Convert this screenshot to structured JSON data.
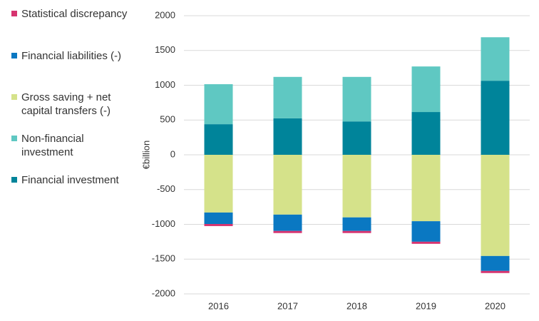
{
  "chart_data": {
    "type": "stacked-bar",
    "y_label": "€billion",
    "categories": [
      "2016",
      "2017",
      "2018",
      "2019",
      "2020"
    ],
    "series": [
      {
        "name": "Financial investment",
        "color": "#00849a",
        "values": [
          440,
          525,
          480,
          615,
          1065
        ]
      },
      {
        "name": "Non-financial investment",
        "color": "#5fc8c2",
        "values": [
          575,
          595,
          640,
          655,
          625
        ]
      },
      {
        "name": "Gross saving + net capital transfers (-)",
        "color": "#d5e28a",
        "values": [
          -830,
          -860,
          -900,
          -955,
          -1455
        ]
      },
      {
        "name": "Financial liabilities (-)",
        "color": "#0a78c2",
        "values": [
          -165,
          -235,
          -195,
          -295,
          -215
        ]
      },
      {
        "name": "Statistical discrepancy",
        "color": "#d6336f",
        "values": [
          -30,
          -30,
          -30,
          -30,
          -30
        ]
      }
    ],
    "ylim": [
      -2000,
      2000
    ],
    "yticks": [
      -2000,
      -1500,
      -1000,
      -500,
      0,
      500,
      1000,
      1500,
      2000
    ],
    "grid": true
  }
}
